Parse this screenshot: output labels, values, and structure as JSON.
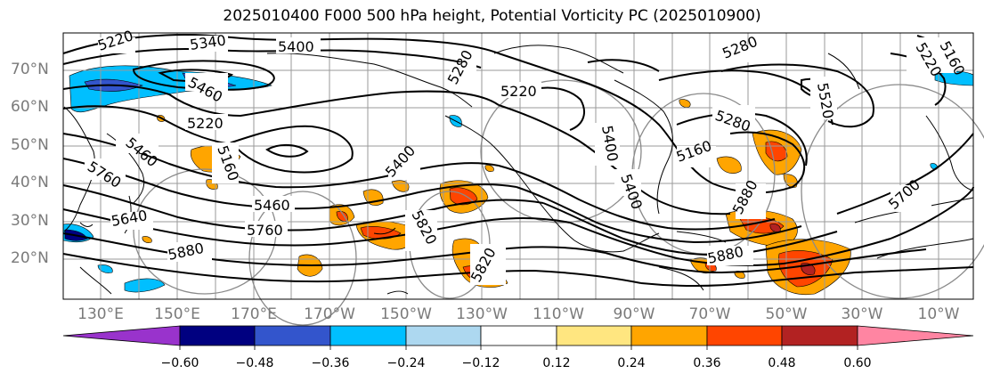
{
  "title": "2025010400 F000 500 hPa height, Potential Vorticity PC (2025010900)",
  "lat_labels": [
    "70°N",
    "60°N",
    "50°N",
    "40°N",
    "30°N",
    "20°N"
  ],
  "lon_labels": [
    "130°E",
    "150°E",
    "170°E",
    "170°W",
    "150°W",
    "130°W",
    "110°W",
    "90°W",
    "70°W",
    "50°W",
    "30°W",
    "10°W"
  ],
  "contour_labels": [
    "5220",
    "5340",
    "5400",
    "5460",
    "5220",
    "5280",
    "5220",
    "5280",
    "5160",
    "5220",
    "5280",
    "5520",
    "5400",
    "5160",
    "5700",
    "5760",
    "5640",
    "5460",
    "5760",
    "5880",
    "5400",
    "5820",
    "5820",
    "5880",
    "5880",
    "5460",
    "5400",
    "5160"
  ],
  "colorbar": {
    "ticks": [
      "−0.60",
      "−0.48",
      "−0.36",
      "−0.24",
      "−0.12",
      "0.12",
      "0.24",
      "0.36",
      "0.48",
      "0.60"
    ],
    "colors": [
      "#9933cc",
      "#000080",
      "#3355cc",
      "#00bfff",
      "#add8f0",
      "#ffffff",
      "#ffe680",
      "#ffa500",
      "#ff4500",
      "#b22222",
      "#ff85a2"
    ]
  }
}
